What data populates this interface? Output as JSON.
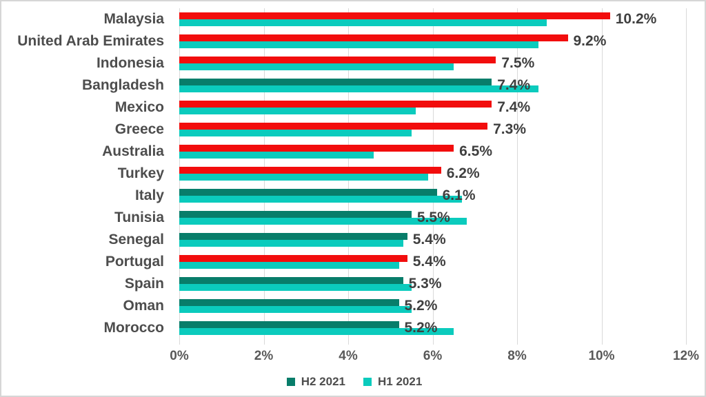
{
  "chart_data": {
    "type": "bar",
    "orientation": "horizontal",
    "title": "",
    "xlabel": "",
    "ylabel": "",
    "xlim": [
      0,
      12
    ],
    "x_tick_labels": [
      "0%",
      "2%",
      "4%",
      "6%",
      "8%",
      "10%",
      "12%"
    ],
    "grid": true,
    "legend_position": "bottom",
    "categories": [
      "Malaysia",
      "United Arab Emirates",
      "Indonesia",
      "Bangladesh",
      "Mexico",
      "Greece",
      "Australia",
      "Turkey",
      "Italy",
      "Tunisia",
      "Senegal",
      "Portugal",
      "Spain",
      "Oman",
      "Morocco"
    ],
    "series": [
      {
        "name": "H2 2021",
        "legend_color": "#087d6a",
        "values": [
          10.2,
          9.2,
          7.5,
          7.4,
          7.4,
          7.3,
          6.5,
          6.2,
          6.1,
          5.5,
          5.4,
          5.4,
          5.3,
          5.2,
          5.2
        ],
        "data_labels": [
          "10.2%",
          "9.2%",
          "7.5%",
          "7.4%",
          "7.4%",
          "7.3%",
          "6.5%",
          "6.2%",
          "6.1%",
          "5.5%",
          "5.4%",
          "5.4%",
          "5.3%",
          "5.2%",
          "5.2%"
        ],
        "bar_colors": [
          "#f20d0d",
          "#f20d0d",
          "#f20d0d",
          "#087d6a",
          "#f20d0d",
          "#f20d0d",
          "#f20d0d",
          "#f20d0d",
          "#087d6a",
          "#087d6a",
          "#087d6a",
          "#f20d0d",
          "#087d6a",
          "#087d6a",
          "#087d6a"
        ]
      },
      {
        "name": "H1 2021",
        "legend_color": "#0bcbbd",
        "values": [
          8.7,
          8.5,
          6.5,
          8.5,
          5.6,
          5.5,
          4.6,
          5.9,
          6.7,
          6.8,
          5.3,
          5.2,
          5.5,
          5.5,
          6.5
        ],
        "data_labels": [],
        "bar_colors": [
          "#0bcbbd",
          "#0bcbbd",
          "#0bcbbd",
          "#0bcbbd",
          "#0bcbbd",
          "#0bcbbd",
          "#0bcbbd",
          "#0bcbbd",
          "#0bcbbd",
          "#0bcbbd",
          "#0bcbbd",
          "#0bcbbd",
          "#0bcbbd",
          "#0bcbbd",
          "#0bcbbd"
        ]
      }
    ]
  },
  "colors": {
    "red": "#f20d0d",
    "dark_green": "#087d6a",
    "cyan": "#0bcbbd",
    "gridline": "#d9d9d9",
    "data_label_text": "#3f3f3f",
    "category_text": "#4d4d4d",
    "axis_text": "#595959",
    "frame_border": "#d6d6d6",
    "background": "#ffffff"
  }
}
